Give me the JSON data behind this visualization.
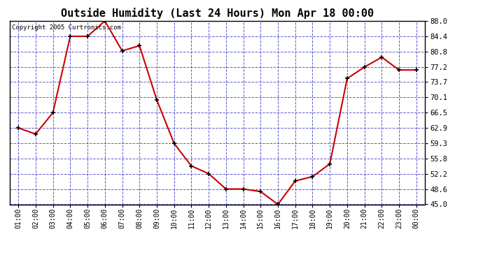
{
  "title": "Outside Humidity (Last 24 Hours) Mon Apr 18 00:00",
  "copyright": "Copyright 2005 Curtronics.com",
  "x_labels": [
    "01:00",
    "02:00",
    "03:00",
    "04:00",
    "05:00",
    "06:00",
    "07:00",
    "08:00",
    "09:00",
    "10:00",
    "11:00",
    "12:00",
    "13:00",
    "14:00",
    "15:00",
    "16:00",
    "17:00",
    "18:00",
    "19:00",
    "20:00",
    "21:00",
    "22:00",
    "23:00",
    "00:00"
  ],
  "x_values": [
    1,
    2,
    3,
    4,
    5,
    6,
    7,
    8,
    9,
    10,
    11,
    12,
    13,
    14,
    15,
    16,
    17,
    18,
    19,
    20,
    21,
    22,
    23,
    24
  ],
  "y_values": [
    62.9,
    61.5,
    66.5,
    84.4,
    84.4,
    88.0,
    81.0,
    82.2,
    69.5,
    59.3,
    54.0,
    52.2,
    48.6,
    48.6,
    48.0,
    45.0,
    50.5,
    51.5,
    54.5,
    74.5,
    77.2,
    79.5,
    76.5,
    76.5
  ],
  "ylim": [
    45.0,
    88.0
  ],
  "yticks": [
    88.0,
    84.4,
    80.8,
    77.2,
    73.7,
    70.1,
    66.5,
    62.9,
    59.3,
    55.8,
    52.2,
    48.6,
    45.0
  ],
  "line_color": "#cc0000",
  "marker_color": "#000000",
  "bg_color": "#ffffff",
  "plot_bg_color": "#ffffff",
  "grid_color": "#3333cc",
  "title_fontsize": 11,
  "copyright_fontsize": 6.5,
  "tick_fontsize": 7,
  "ytick_fontsize": 7.5
}
